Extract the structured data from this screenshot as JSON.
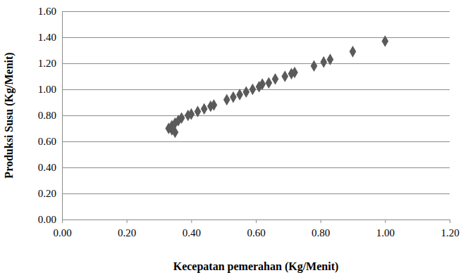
{
  "chart_data": {
    "type": "scatter",
    "x_label": "Kecepatan pemerahan (Kg/Menit)",
    "y_label": "Produksi Susu (Kg/Menit)",
    "x": [
      0.33,
      0.34,
      0.34,
      0.35,
      0.35,
      0.36,
      0.37,
      0.39,
      0.4,
      0.42,
      0.44,
      0.46,
      0.47,
      0.51,
      0.53,
      0.55,
      0.57,
      0.59,
      0.61,
      0.62,
      0.64,
      0.66,
      0.69,
      0.71,
      0.72,
      0.78,
      0.81,
      0.83,
      0.9,
      1.0
    ],
    "values": [
      0.7,
      0.72,
      0.69,
      0.74,
      0.67,
      0.76,
      0.78,
      0.8,
      0.81,
      0.83,
      0.85,
      0.87,
      0.88,
      0.92,
      0.94,
      0.96,
      0.98,
      1.0,
      1.02,
      1.04,
      1.05,
      1.08,
      1.1,
      1.12,
      1.13,
      1.18,
      1.21,
      1.23,
      1.29,
      1.37
    ],
    "color": "#5a5a5a",
    "marker": "diamond",
    "xlim": [
      0,
      1.2
    ],
    "ylim": [
      0,
      1.6
    ],
    "xticks": [
      {
        "value": 0,
        "label": "0.00"
      },
      {
        "value": 0.2,
        "label": "0.20"
      },
      {
        "value": 0.4,
        "label": "0.40"
      },
      {
        "value": 0.6,
        "label": "0.60"
      },
      {
        "value": 0.8,
        "label": "0.80"
      },
      {
        "value": 1.0,
        "label": "1.00"
      },
      {
        "value": 1.2,
        "label": "1.20"
      }
    ],
    "yticks": [
      {
        "value": 0,
        "label": "0.00"
      },
      {
        "value": 0.2,
        "label": "0.20"
      },
      {
        "value": 0.4,
        "label": "0.40"
      },
      {
        "value": 0.6,
        "label": "0.60"
      },
      {
        "value": 0.8,
        "label": "0.80"
      },
      {
        "value": 1.0,
        "label": "1.00"
      },
      {
        "value": 1.2,
        "label": "1.20"
      },
      {
        "value": 1.4,
        "label": "1.40"
      },
      {
        "value": 1.6,
        "label": "1.60"
      }
    ],
    "grid": true
  }
}
